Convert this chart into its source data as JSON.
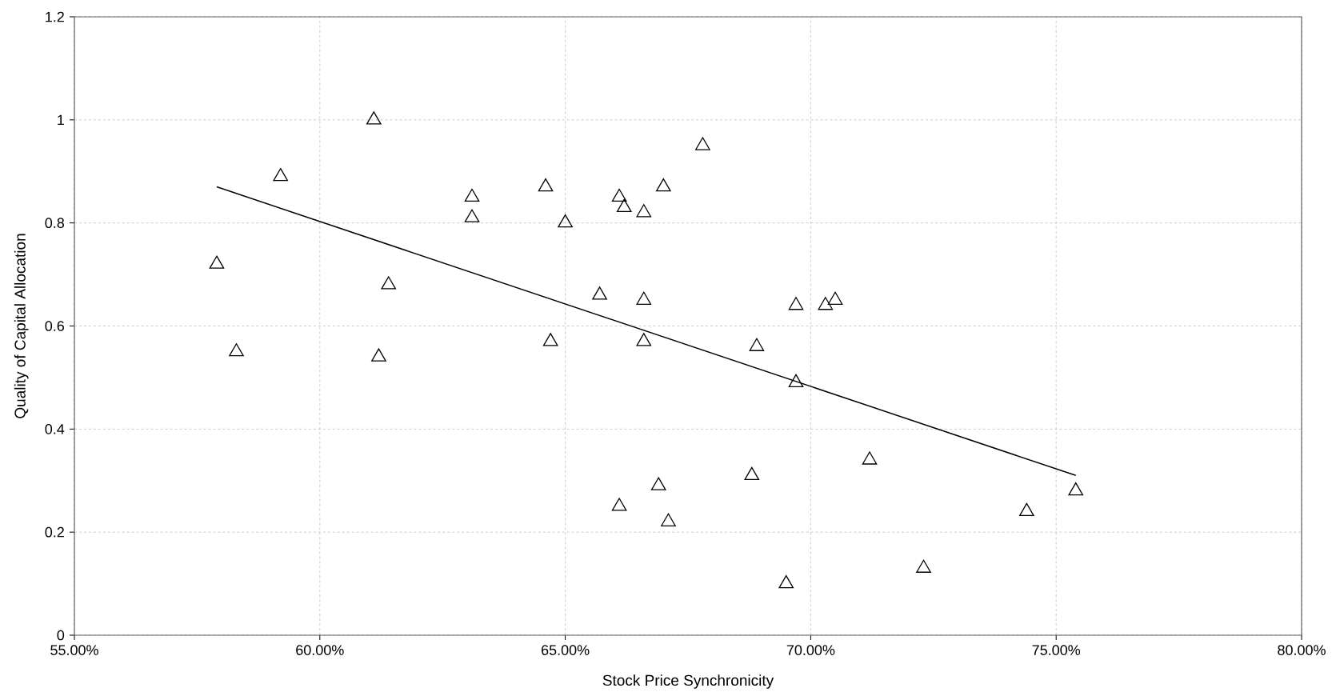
{
  "chart_data": {
    "type": "scatter",
    "xlabel": "Stock Price Synchronicity",
    "ylabel": "Quality of Capital Allocation",
    "xlim": [
      55,
      80
    ],
    "ylim": [
      0,
      1.2
    ],
    "xticks": [
      {
        "value": 55,
        "label": "55.00%"
      },
      {
        "value": 60,
        "label": "60.00%"
      },
      {
        "value": 65,
        "label": "65.00%"
      },
      {
        "value": 70,
        "label": "70.00%"
      },
      {
        "value": 75,
        "label": "75.00%"
      },
      {
        "value": 80,
        "label": "80.00%"
      }
    ],
    "yticks": [
      0,
      0.2,
      0.4,
      0.6,
      0.8,
      1,
      1.2
    ],
    "grid": true,
    "marker": "triangle",
    "series": [
      {
        "color": "#000000",
        "x": [
          57.9,
          58.3,
          59.2,
          61.1,
          61.4,
          61.2,
          63.1,
          63.1,
          64.6,
          64.7,
          65.0,
          65.7,
          66.1,
          66.2,
          66.6,
          66.6,
          66.6,
          67.0,
          67.8,
          66.1,
          66.9,
          67.1,
          68.9,
          68.8,
          69.7,
          69.7,
          69.5,
          70.3,
          70.5,
          71.2,
          72.3,
          74.4,
          75.4
        ],
        "values": [
          0.72,
          0.55,
          0.89,
          1.0,
          0.68,
          0.54,
          0.85,
          0.81,
          0.87,
          0.57,
          0.8,
          0.66,
          0.85,
          0.83,
          0.82,
          0.65,
          0.57,
          0.87,
          0.95,
          0.25,
          0.29,
          0.22,
          0.56,
          0.31,
          0.64,
          0.49,
          0.1,
          0.64,
          0.65,
          0.34,
          0.13,
          0.24,
          0.28
        ]
      },
      {
        "type": "line",
        "marker": "none",
        "color": "#000000",
        "x": [
          57.9,
          75.4
        ],
        "values": [
          0.87,
          0.31
        ]
      }
    ]
  }
}
